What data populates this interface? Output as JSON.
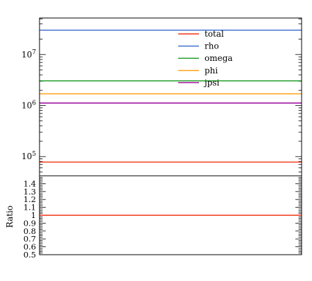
{
  "chart_data": [
    {
      "type": "line",
      "yscale": "log",
      "ylim": [
        42000,
        52000000
      ],
      "xlabel": "",
      "ylabel": "",
      "grid": false,
      "legend_position": "top-center",
      "ytick_labels": [
        {
          "value": 100000,
          "base": "10",
          "exp": "5"
        },
        {
          "value": 1000000,
          "base": "10",
          "exp": "6"
        },
        {
          "value": 10000000,
          "base": "10",
          "exp": "7"
        }
      ],
      "series": [
        {
          "name": "total",
          "color": "#ee3311",
          "y": 78000
        },
        {
          "name": "rho",
          "color": "#3366cc",
          "y": 30000000
        },
        {
          "name": "omega",
          "color": "#109618",
          "y": 3050000
        },
        {
          "name": "phi",
          "color": "#ff9900",
          "y": 1700000
        },
        {
          "name": "jpsi",
          "color": "#990099",
          "y": 1120000
        }
      ]
    },
    {
      "type": "line",
      "ylabel": "Ratio",
      "ylim": [
        0.5,
        1.5
      ],
      "grid": false,
      "ytick_labels": [
        "0.5",
        "0.6",
        "0.7",
        "0.8",
        "0.9",
        "1",
        "1.1",
        "1.2",
        "1.3",
        "1.4"
      ],
      "ytick_values": [
        0.5,
        0.6,
        0.7,
        0.8,
        0.9,
        1.0,
        1.1,
        1.2,
        1.3,
        1.4
      ],
      "series": [
        {
          "name": "total",
          "color": "#ee3311",
          "y": 1.0
        }
      ]
    }
  ]
}
